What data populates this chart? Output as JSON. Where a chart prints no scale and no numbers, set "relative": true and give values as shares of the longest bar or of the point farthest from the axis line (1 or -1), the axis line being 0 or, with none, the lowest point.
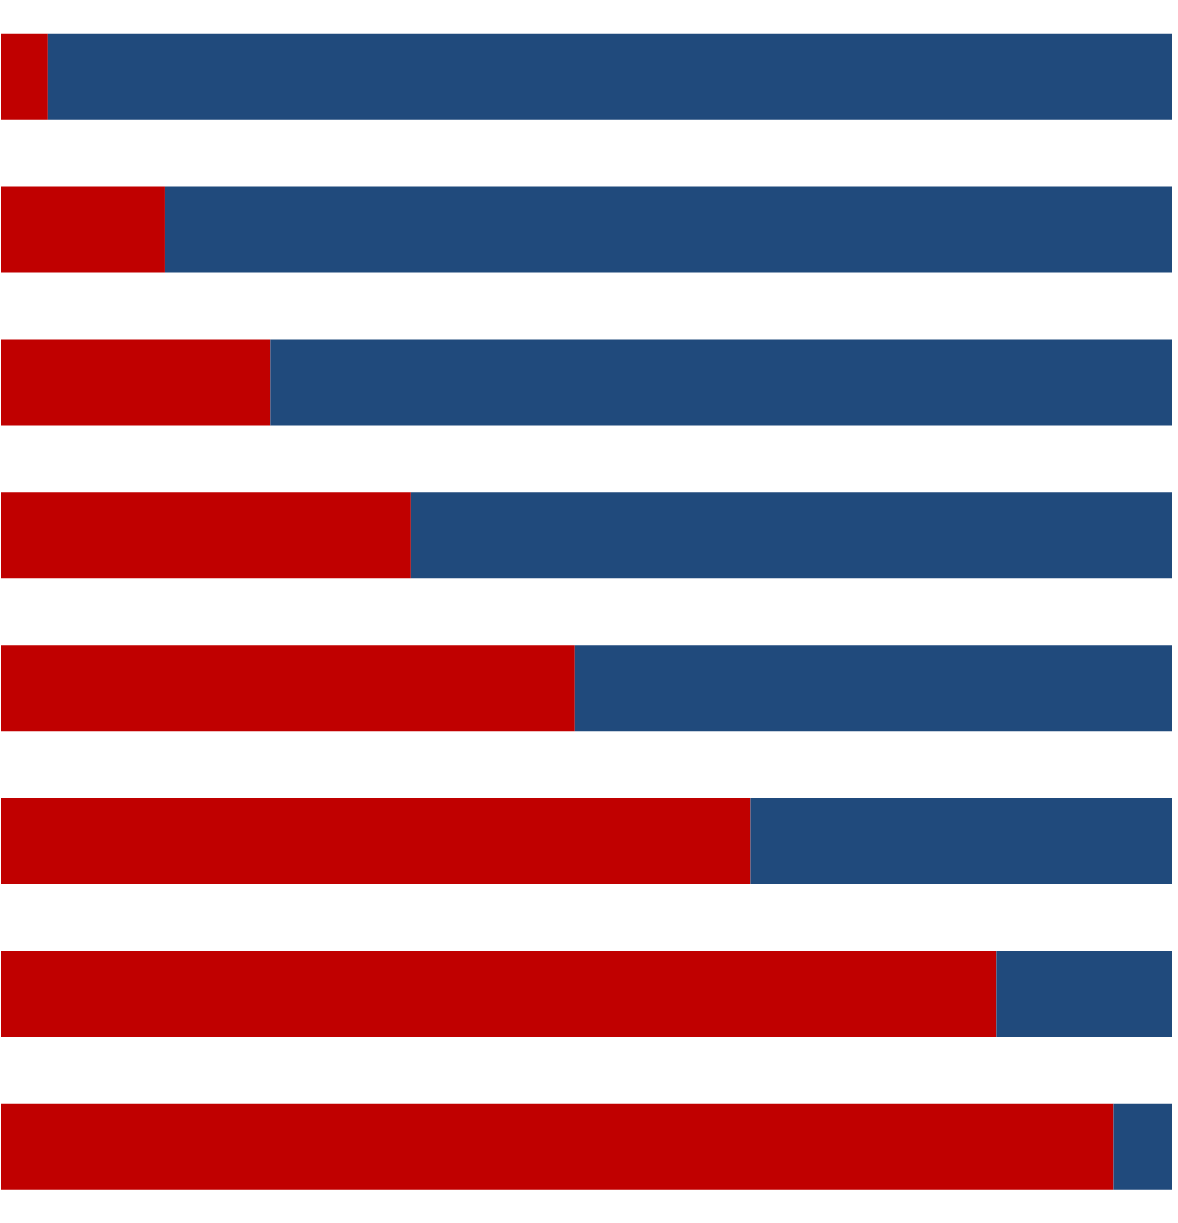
{
  "chart_data": {
    "type": "bar",
    "orientation": "horizontal",
    "stacked": true,
    "relative": true,
    "categories": [
      null,
      null,
      null,
      null,
      null,
      null,
      null,
      null
    ],
    "series": [
      {
        "color": "#c00000",
        "values": [
          0.04,
          0.14,
          0.23,
          0.35,
          0.49,
          0.64,
          0.85,
          0.95
        ]
      },
      {
        "color": "#204a7c",
        "values": [
          0.96,
          0.86,
          0.77,
          0.65,
          0.51,
          0.36,
          0.15,
          0.05
        ]
      }
    ]
  }
}
